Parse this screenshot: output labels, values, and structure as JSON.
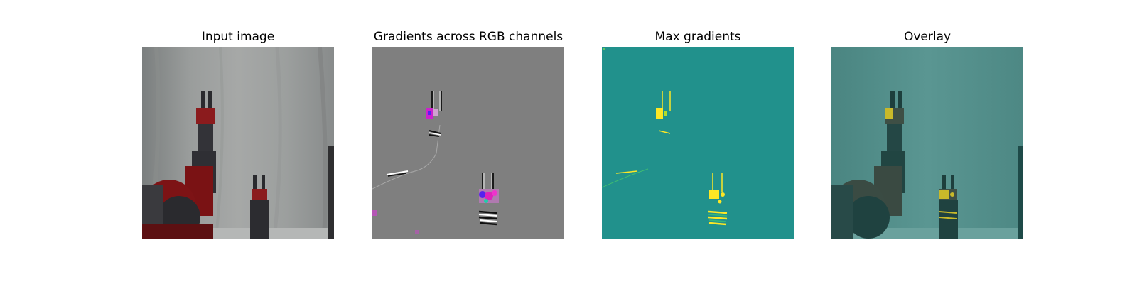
{
  "panels": [
    {
      "title": "Input image"
    },
    {
      "title": "Gradients across RGB channels"
    },
    {
      "title": "Max gradients"
    },
    {
      "title": "Overlay"
    }
  ],
  "colors": {
    "input_background": "#8f9292",
    "gradient_background": "#7f7f7f",
    "max_gradient_background": "#21918c",
    "overlay_background": "#4f8d89",
    "robot_red": "#8b1b1d",
    "robot_dark": "#2f2f34",
    "gradient_magenta": "#cc22cc",
    "gradient_yellow": "#fde725"
  }
}
